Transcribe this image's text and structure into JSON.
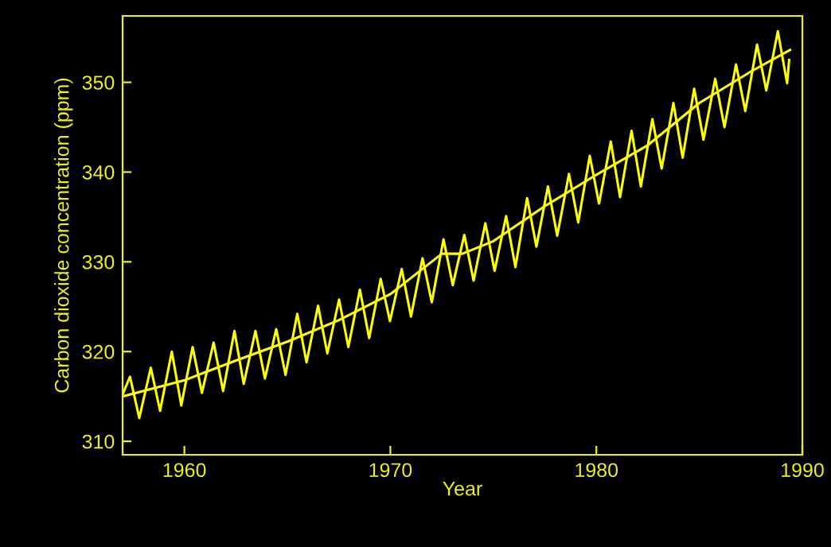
{
  "chart_data": {
    "type": "line",
    "xlabel": "Year",
    "ylabel": "Carbon dioxide concentration (ppm)",
    "xlim": [
      1957,
      1990
    ],
    "ylim": [
      308.5,
      357.4
    ],
    "xticks": [
      1960,
      1970,
      1980,
      1990
    ],
    "yticks": [
      310,
      320,
      330,
      340,
      350
    ],
    "grid": false,
    "legend": false,
    "series": [
      {
        "color": "#ffff00",
        "x": [
          1957.0,
          1957.36,
          1957.81,
          1958.37,
          1958.82,
          1959.39,
          1959.85,
          1960.4,
          1960.85,
          1961.42,
          1961.88,
          1962.43,
          1962.88,
          1963.45,
          1963.91,
          1964.46,
          1964.91,
          1965.48,
          1965.93,
          1966.49,
          1966.94,
          1967.51,
          1967.96,
          1968.52,
          1968.97,
          1969.53,
          1969.98,
          1970.55,
          1971.0,
          1971.56,
          1972.01,
          1972.58,
          1973.03,
          1973.59,
          1974.04,
          1974.61,
          1975.06,
          1975.62,
          1976.07,
          1976.64,
          1977.09,
          1977.65,
          1978.1,
          1978.67,
          1979.12,
          1979.68,
          1980.13,
          1980.7,
          1981.15,
          1981.71,
          1982.16,
          1982.72,
          1983.17,
          1983.74,
          1984.19,
          1984.75,
          1985.2,
          1985.77,
          1986.22,
          1986.78,
          1987.23,
          1987.8,
          1988.25,
          1988.81,
          1989.26,
          1989.36
        ],
        "values": [
          315.2,
          317.2,
          312.6,
          318.2,
          313.4,
          320.0,
          314.0,
          320.5,
          315.4,
          321.0,
          315.6,
          322.3,
          316.4,
          322.3,
          317.0,
          322.5,
          317.4,
          324.2,
          318.8,
          325.1,
          319.8,
          325.8,
          320.5,
          326.9,
          321.5,
          328.1,
          323.4,
          329.2,
          323.9,
          330.4,
          325.5,
          332.5,
          327.4,
          333.0,
          327.9,
          334.3,
          329.0,
          335.1,
          329.4,
          337.1,
          331.7,
          338.4,
          332.9,
          339.8,
          334.4,
          341.8,
          336.5,
          343.4,
          337.2,
          344.6,
          338.4,
          345.9,
          340.4,
          347.7,
          341.6,
          349.3,
          343.6,
          350.4,
          345.0,
          352.0,
          346.8,
          354.2,
          349.1,
          355.7,
          349.9,
          352.5
        ]
      },
      {
        "color": "#ffff00",
        "x": [
          1957.0,
          1960.0,
          1962.5,
          1965.0,
          1967.5,
          1970.0,
          1972.5,
          1973.5,
          1975.0,
          1977.5,
          1980.0,
          1982.5,
          1985.0,
          1987.5,
          1989.4
        ],
        "values": [
          315.0,
          316.8,
          319.0,
          321.1,
          323.5,
          326.4,
          330.9,
          330.9,
          332.3,
          336.2,
          339.7,
          343.0,
          347.7,
          351.2,
          353.6
        ]
      }
    ]
  }
}
